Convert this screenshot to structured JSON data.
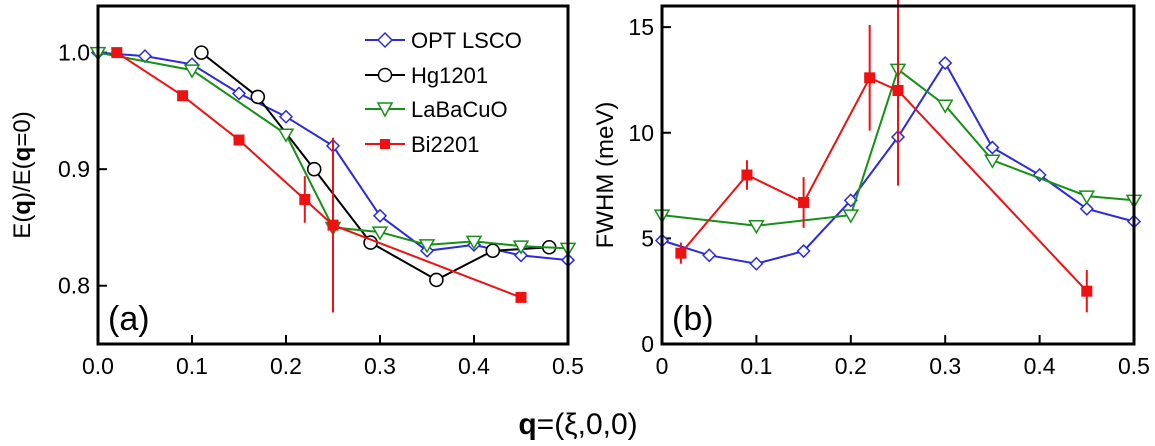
{
  "chart_data": [
    {
      "type": "line",
      "panel_label": "(a)",
      "ylabel": {
        "pre": "E(",
        "q1": "q",
        "mid": ")/E(",
        "q2": "q",
        "post": "=0)"
      },
      "xlim": [
        0,
        0.5
      ],
      "ylim": [
        0.75,
        1.04
      ],
      "xticks": [
        0,
        0.1,
        0.2,
        0.3,
        0.4,
        0.5
      ],
      "xtick_labels": [
        "0.0",
        "0.1",
        "0.2",
        "0.3",
        "0.4",
        "0.5"
      ],
      "yticks": [
        0.8,
        0.9,
        1.0
      ],
      "ytick_labels": [
        "0.8",
        "0.9",
        "1.0"
      ],
      "legend": {
        "placement": "top-right"
      },
      "series": [
        {
          "name": "OPT LSCO",
          "color": "#2b2bdc",
          "marker": "diamond",
          "x": [
            0.0,
            0.05,
            0.1,
            0.15,
            0.2,
            0.25,
            0.3,
            0.35,
            0.4,
            0.45,
            0.5
          ],
          "y": [
            1.0,
            0.997,
            0.99,
            0.965,
            0.945,
            0.92,
            0.86,
            0.83,
            0.835,
            0.826,
            0.822
          ]
        },
        {
          "name": "Hg1201",
          "color": "#000000",
          "marker": "circle",
          "x": [
            0.11,
            0.17,
            0.23,
            0.29,
            0.36,
            0.42,
            0.48
          ],
          "y": [
            1.0,
            0.962,
            0.9,
            0.837,
            0.805,
            0.83,
            0.833
          ]
        },
        {
          "name": "LaBaCuO",
          "color": "#159015",
          "marker": "triangle-down",
          "x": [
            0.0,
            0.1,
            0.2,
            0.25,
            0.3,
            0.35,
            0.4,
            0.45,
            0.5
          ],
          "y": [
            1.0,
            0.985,
            0.93,
            0.85,
            0.846,
            0.835,
            0.838,
            0.834,
            0.832
          ]
        },
        {
          "name": "Bi2201",
          "color": "#ee1111",
          "marker": "square",
          "x": [
            0.02,
            0.09,
            0.15,
            0.22,
            0.25,
            0.45
          ],
          "y": [
            1.0,
            0.963,
            0.925,
            0.874,
            0.852,
            0.79
          ],
          "err": [
            0,
            0,
            0,
            0.02,
            0.075,
            0
          ]
        }
      ]
    },
    {
      "type": "line",
      "panel_label": "(b)",
      "ylabel": "FWHM (meV)",
      "xlim": [
        0,
        0.5
      ],
      "ylim": [
        0,
        16
      ],
      "xticks": [
        0,
        0.1,
        0.2,
        0.3,
        0.4,
        0.5
      ],
      "xtick_labels": [
        "0",
        "0.1",
        "0.2",
        "0.3",
        "0.4",
        "0.5"
      ],
      "yticks": [
        0,
        5,
        10,
        15
      ],
      "ytick_labels": [
        "0",
        "5",
        "10",
        "15"
      ],
      "series": [
        {
          "name": "OPT LSCO",
          "color": "#2b2bdc",
          "marker": "diamond",
          "x": [
            0.0,
            0.05,
            0.1,
            0.15,
            0.2,
            0.25,
            0.3,
            0.35,
            0.4,
            0.45,
            0.5
          ],
          "y": [
            4.9,
            4.2,
            3.8,
            4.4,
            6.8,
            9.8,
            13.3,
            9.3,
            8.0,
            6.4,
            5.8
          ]
        },
        {
          "name": "LaBaCuO",
          "color": "#159015",
          "marker": "triangle-down",
          "x": [
            0.0,
            0.1,
            0.2,
            0.25,
            0.3,
            0.35,
            0.45,
            0.5
          ],
          "y": [
            6.1,
            5.6,
            6.1,
            13.0,
            11.3,
            8.7,
            7.0,
            6.8
          ]
        },
        {
          "name": "Bi2201",
          "color": "#ee1111",
          "marker": "square",
          "x": [
            0.02,
            0.09,
            0.15,
            0.22,
            0.25,
            0.45
          ],
          "y": [
            4.3,
            8.0,
            6.7,
            12.6,
            12.0,
            2.5
          ],
          "err": [
            0.5,
            0.7,
            1.2,
            2.5,
            4.5,
            1.0
          ]
        }
      ]
    }
  ],
  "shared_xlabel": {
    "bold": "q",
    "rest": "=(ξ,0,0)"
  }
}
